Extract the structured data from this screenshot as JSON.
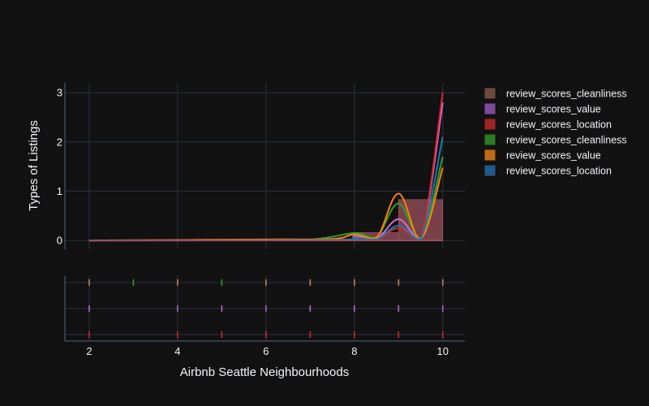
{
  "chart_data": {
    "type": "area",
    "title": "",
    "xlabel": "Airbnb Seattle Neighbourhoods",
    "ylabel": "Types of Listings",
    "xlim": [
      1.45,
      10.5
    ],
    "ylim": [
      -0.18,
      3.2
    ],
    "xticks": [
      2,
      4,
      6,
      8,
      10
    ],
    "yticks": [
      0,
      1,
      2,
      3
    ],
    "grid": true,
    "legend_position": "right",
    "histogram": {
      "name": "review_scores_cleanliness",
      "color": "#8b4a55",
      "bins": [
        {
          "x0": 2,
          "x1": 8,
          "value": 0.01
        },
        {
          "x0": 8,
          "x1": 9,
          "value": 0.16
        },
        {
          "x0": 9,
          "x1": 10,
          "value": 0.83
        }
      ]
    },
    "series": [
      {
        "name": "review_scores_value",
        "color": "#d66fd0",
        "points": [
          [
            2,
            0
          ],
          [
            7.5,
            0.01
          ],
          [
            8,
            0.08
          ],
          [
            8.5,
            0.03
          ],
          [
            9,
            0.43
          ],
          [
            9.5,
            0.03
          ],
          [
            10,
            2.8
          ]
        ]
      },
      {
        "name": "review_scores_location",
        "color": "#d62728",
        "points": [
          [
            2,
            0
          ],
          [
            7.5,
            0.01
          ],
          [
            8,
            0.05
          ],
          [
            8.5,
            0.02
          ],
          [
            9,
            0.25
          ],
          [
            9.5,
            0.02
          ],
          [
            10,
            3.0
          ]
        ]
      },
      {
        "name": "review_scores_cleanliness",
        "color": "#2ca02c",
        "points": [
          [
            2,
            0
          ],
          [
            5,
            0.01
          ],
          [
            7,
            0.02
          ],
          [
            8,
            0.15
          ],
          [
            8.5,
            0.07
          ],
          [
            9,
            0.75
          ],
          [
            9.5,
            0.05
          ],
          [
            10,
            1.7
          ]
        ]
      },
      {
        "name": "review_scores_value",
        "color": "#ff7f0e",
        "points": [
          [
            2,
            0
          ],
          [
            6,
            0.02
          ],
          [
            7.5,
            0.03
          ],
          [
            8,
            0.12
          ],
          [
            8.5,
            0.05
          ],
          [
            9,
            0.95
          ],
          [
            9.5,
            0.03
          ],
          [
            10,
            1.48
          ]
        ]
      },
      {
        "name": "review_scores_location",
        "color": "#1f77b4",
        "points": [
          [
            2,
            0
          ],
          [
            7.5,
            0.01
          ],
          [
            8,
            0.06
          ],
          [
            8.5,
            0.02
          ],
          [
            9,
            0.3
          ],
          [
            9.5,
            0.02
          ],
          [
            10,
            2.1
          ]
        ]
      }
    ],
    "rug": [
      {
        "row": 0,
        "marks": [
          {
            "x": 2,
            "color": "#c47e5f"
          },
          {
            "x": 3,
            "color": "#2ca02c"
          },
          {
            "x": 4,
            "color": "#c47e5f"
          },
          {
            "x": 5,
            "color": "#2ca02c"
          },
          {
            "x": 6,
            "color": "#c47e5f"
          },
          {
            "x": 7,
            "color": "#c47e5f"
          },
          {
            "x": 8,
            "color": "#c47e5f"
          },
          {
            "x": 9,
            "color": "#c47e5f"
          },
          {
            "x": 10,
            "color": "#c47e5f"
          }
        ]
      },
      {
        "row": 1,
        "marks": [
          {
            "x": 2,
            "color": "#b266c8"
          },
          {
            "x": 4,
            "color": "#b266c8"
          },
          {
            "x": 5,
            "color": "#b266c8"
          },
          {
            "x": 6,
            "color": "#b266c8"
          },
          {
            "x": 7,
            "color": "#b266c8"
          },
          {
            "x": 8,
            "color": "#b266c8"
          },
          {
            "x": 9,
            "color": "#b266c8"
          },
          {
            "x": 10,
            "color": "#b266c8"
          }
        ]
      },
      {
        "row": 2,
        "marks": [
          {
            "x": 2,
            "color": "#d62728"
          },
          {
            "x": 4,
            "color": "#d62728"
          },
          {
            "x": 5,
            "color": "#d62728"
          },
          {
            "x": 6,
            "color": "#d62728"
          },
          {
            "x": 7,
            "color": "#d62728"
          },
          {
            "x": 8,
            "color": "#d62728"
          },
          {
            "x": 9,
            "color": "#d62728"
          },
          {
            "x": 10,
            "color": "#d62728"
          }
        ]
      }
    ]
  },
  "legend": [
    {
      "label": "review_scores_cleanliness",
      "color": "#6b4a3e"
    },
    {
      "label": "review_scores_value",
      "color": "#7b4a9a"
    },
    {
      "label": "review_scores_location",
      "color": "#a22222"
    },
    {
      "label": "review_scores_cleanliness",
      "color": "#2a7a22"
    },
    {
      "label": "review_scores_value",
      "color": "#c06a14"
    },
    {
      "label": "review_scores_location",
      "color": "#1e5a8a"
    }
  ]
}
